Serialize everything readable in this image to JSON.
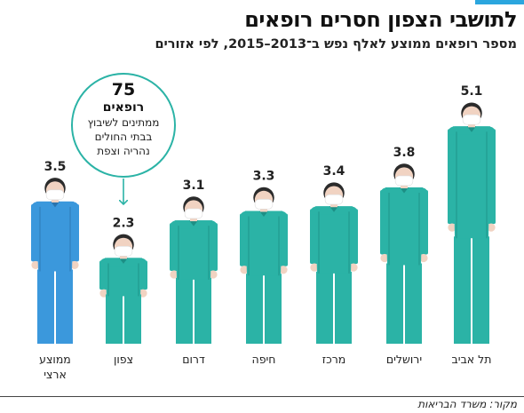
{
  "header": {
    "title": "לתושבי הצפון חסרים רופאים",
    "subtitle": "מספר רופאים ממוצע לאלף נפש ב־2013–2015, לפי אזורים"
  },
  "colors": {
    "accent": "#2ba6de",
    "figure_teal": "#2bb3a6",
    "figure_teal_dark": "#1d8f85",
    "figure_blue": "#3b98dc",
    "figure_blue_dark": "#2a73ad",
    "skin": "#f1d3c2",
    "hair": "#2b2b2b",
    "mask": "#ffffff"
  },
  "chart_data": {
    "type": "bar",
    "title": "לתושבי הצפון חסרים רופאים",
    "subtitle": "מספר רופאים ממוצע לאלף נפש ב־2013–2015, לפי אזורים",
    "xlabel": "",
    "ylabel": "",
    "encoding": "pictogram",
    "categories": [
      {
        "label": "ממוצע",
        "label_line2": "ארצי",
        "value": 3.5,
        "value_label": "3.5",
        "color": "#3b98dc"
      },
      {
        "label": "צפון",
        "label_line2": "",
        "value": 2.3,
        "value_label": "2.3",
        "color": "#2bb3a6"
      },
      {
        "label": "דרום",
        "label_line2": "",
        "value": 3.1,
        "value_label": "3.1",
        "color": "#2bb3a6"
      },
      {
        "label": "חיפה",
        "label_line2": "",
        "value": 3.3,
        "value_label": "3.3",
        "color": "#2bb3a6"
      },
      {
        "label": "מרכז",
        "label_line2": "",
        "value": 3.4,
        "value_label": "3.4",
        "color": "#2bb3a6"
      },
      {
        "label": "ירושלים",
        "label_line2": "",
        "value": 3.8,
        "value_label": "3.8",
        "color": "#2bb3a6"
      },
      {
        "label": "תל אביב",
        "label_line2": "",
        "value": 5.1,
        "value_label": "5.1",
        "color": "#2bb3a6"
      }
    ],
    "annotation": {
      "target_category": "צפון",
      "number": "75",
      "unit": "רופאים",
      "line1": "ממתינים לשיבוץ",
      "line2": "בבתי החולים",
      "line3": "נהריה וצפת"
    },
    "grid": false,
    "legend": "none"
  },
  "source": "מקור: משרד הבריאות"
}
